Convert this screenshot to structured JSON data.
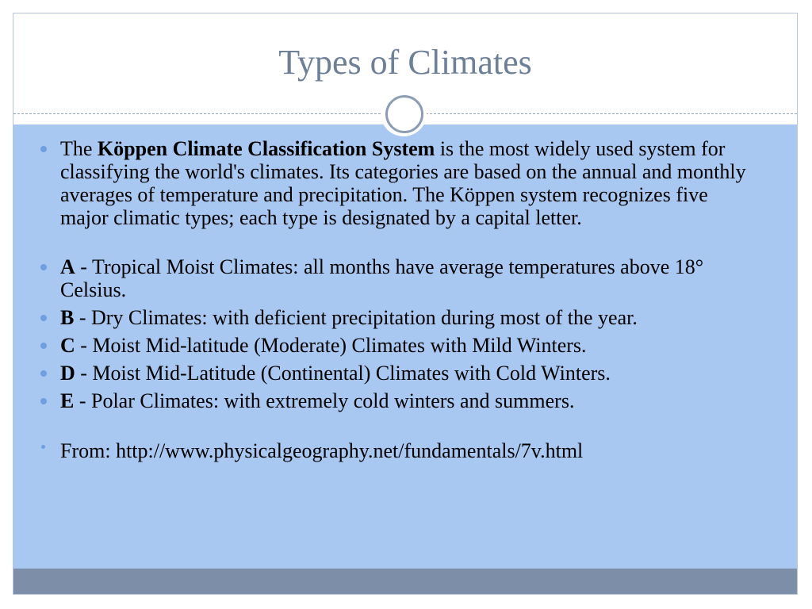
{
  "slide": {
    "title": "Types of Climates",
    "intro": {
      "prefix": "The ",
      "bold": "Köppen Climate Classification System",
      "rest": " is the most widely used system for classifying the world's climates. Its categories are based on the annual and monthly averages of temperature and precipitation. The Köppen system recognizes five major climatic types; each type is designated by a capital letter."
    },
    "types": [
      {
        "letter": "A",
        "text": " - Tropical Moist Climates: all months have average temperatures above 18° Celsius."
      },
      {
        "letter": "B",
        "text": " - Dry Climates: with deficient precipitation during most of the year."
      },
      {
        "letter": "C",
        "text": " - Moist Mid-latitude (Moderate) Climates with Mild Winters."
      },
      {
        "letter": "D",
        "text": " - Moist Mid-Latitude (Continental) Climates with Cold Winters."
      },
      {
        "letter": "E",
        "text": " - Polar Climates: with extremely cold winters and summers."
      }
    ],
    "source": "From: http://www.physicalgeography.net/fundamentals/7v.html"
  },
  "colors": {
    "title": "#6e7f98",
    "content_background": "#a8c8f2",
    "footer": "#7c8ea8",
    "bullet": "#6f9fdf"
  }
}
